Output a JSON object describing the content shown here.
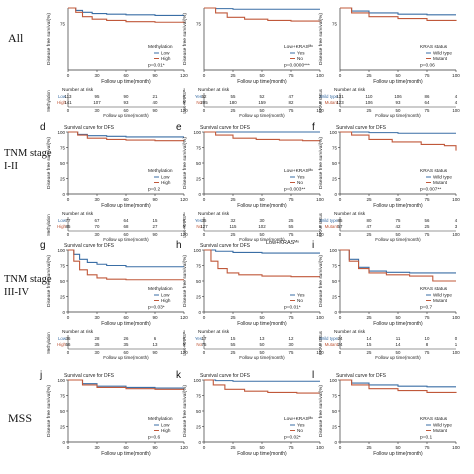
{
  "row_labels": [
    {
      "lines": [
        "All"
      ]
    },
    {
      "lines": [
        "TNM stage",
        "I-II"
      ]
    },
    {
      "lines": [
        "TNM stage",
        "III-IV"
      ]
    },
    {
      "lines": [
        "MSS"
      ]
    }
  ],
  "common": {
    "panel_title": "Survival curve for DFS",
    "ylabel": "Disease free survival(%)",
    "xlabel": "Follow up time(month)",
    "risk_title": "Number at risk",
    "colors": {
      "low": "#3a6ea5",
      "high": "#c0583a"
    }
  },
  "chart_data": [
    {
      "panel": "a",
      "type": "line",
      "show_title": false,
      "show_yticks": false,
      "ylim": [
        0,
        100
      ],
      "xlim": [
        0,
        120
      ],
      "xticks": [
        "0",
        "30",
        "60",
        "90",
        "120"
      ],
      "legend_title": "Methylation",
      "legend": [
        "Low",
        "High"
      ],
      "pvalue": "p=0.01*",
      "risk_labels": [
        "Low",
        "High"
      ],
      "risk_axis": "Methylation",
      "risk": [
        [
          "113",
          "95",
          "90",
          "21",
          "0"
        ],
        [
          "141",
          "107",
          "93",
          "40",
          "0"
        ]
      ],
      "series": [
        {
          "name": "Low",
          "x": [
            0,
            8,
            15,
            25,
            40,
            60,
            90,
            120
          ],
          "y": [
            100,
            96,
            93,
            91,
            90,
            89,
            88,
            88
          ]
        },
        {
          "name": "High",
          "x": [
            0,
            8,
            15,
            25,
            40,
            60,
            90,
            120
          ],
          "y": [
            100,
            93,
            86,
            82,
            80,
            78,
            77,
            76
          ]
        }
      ]
    },
    {
      "panel": "b",
      "type": "line",
      "show_title": false,
      "show_yticks": false,
      "ylim": [
        0,
        100
      ],
      "xlim": [
        0,
        100
      ],
      "xticks": [
        "0",
        "25",
        "50",
        "75",
        "100"
      ],
      "legend_title": "Low+KRASᴹᵘ",
      "legend": [
        "Yes",
        "No"
      ],
      "pvalue": "p=0.0000***",
      "risk_labels": [
        "Yes",
        "No"
      ],
      "risk_axis": "Low+KRASᴹᵘ",
      "risk": [
        [
          "52",
          "55",
          "52",
          "47",
          "3"
        ],
        [
          "205",
          "180",
          "159",
          "82",
          "6"
        ]
      ],
      "series": [
        {
          "name": "Yes",
          "x": [
            0,
            10,
            25,
            50,
            75,
            100
          ],
          "y": [
            100,
            99,
            98,
            98,
            98,
            98
          ]
        },
        {
          "name": "No",
          "x": [
            0,
            10,
            20,
            35,
            55,
            75,
            100
          ],
          "y": [
            100,
            92,
            85,
            82,
            80,
            79,
            78
          ]
        }
      ]
    },
    {
      "panel": "c",
      "type": "line",
      "show_title": false,
      "show_yticks": false,
      "ylim": [
        0,
        100
      ],
      "xlim": [
        0,
        100
      ],
      "xticks": [
        "0",
        "25",
        "50",
        "75",
        "100"
      ],
      "legend_title": "KRAS status",
      "legend": [
        "Wild type",
        "Mutant"
      ],
      "pvalue": "p=0.06",
      "risk_labels": [
        "Wild type",
        "Mutant"
      ],
      "risk_axis": "KRAS status",
      "risk": [
        [
          "131",
          "110",
          "106",
          "86",
          "4"
        ],
        [
          "123",
          "106",
          "93",
          "64",
          "4"
        ]
      ],
      "series": [
        {
          "name": "Wild type",
          "x": [
            0,
            10,
            25,
            50,
            75,
            100
          ],
          "y": [
            100,
            95,
            92,
            90,
            89,
            89
          ]
        },
        {
          "name": "Mutant",
          "x": [
            0,
            10,
            25,
            50,
            75,
            100
          ],
          "y": [
            100,
            92,
            86,
            83,
            80,
            79
          ]
        }
      ]
    },
    {
      "panel": "d",
      "type": "line",
      "show_title": true,
      "show_yticks": true,
      "ylim": [
        0,
        100
      ],
      "xlim": [
        0,
        120
      ],
      "yticks": [
        "0",
        "25",
        "50",
        "75",
        "100"
      ],
      "xticks": [
        "0",
        "30",
        "60",
        "90",
        "120"
      ],
      "legend_title": "Methylation",
      "legend": [
        "Low",
        "High"
      ],
      "pvalue": "p=0.2",
      "risk_labels": [
        "Low",
        "High"
      ],
      "risk_axis": "Methylation",
      "risk": [
        [
          "77",
          "67",
          "64",
          "15",
          "0"
        ],
        [
          "85",
          "70",
          "68",
          "27",
          "0"
        ]
      ],
      "series": [
        {
          "name": "Low",
          "x": [
            0,
            10,
            20,
            40,
            60,
            90,
            120
          ],
          "y": [
            100,
            96,
            94,
            93,
            92,
            92,
            92
          ]
        },
        {
          "name": "High",
          "x": [
            0,
            10,
            20,
            40,
            60,
            90,
            120
          ],
          "y": [
            100,
            95,
            90,
            88,
            87,
            86,
            86
          ]
        }
      ]
    },
    {
      "panel": "e",
      "type": "line",
      "show_title": true,
      "show_yticks": true,
      "ylim": [
        0,
        100
      ],
      "xlim": [
        0,
        100
      ],
      "yticks": [
        "0",
        "25",
        "50",
        "75",
        "100"
      ],
      "xticks": [
        "0",
        "25",
        "50",
        "75",
        "100"
      ],
      "legend_title": "Low+KRASᴹᵘ",
      "legend": [
        "Yes",
        "No"
      ],
      "pvalue": "p=0.003**",
      "risk_labels": [
        "Yes",
        "No"
      ],
      "risk_axis": "Low+KRASᴹᵘ",
      "risk": [
        [
          "35",
          "32",
          "30",
          "25",
          "1"
        ],
        [
          "127",
          "115",
          "102",
          "55",
          "6"
        ]
      ],
      "series": [
        {
          "name": "Yes",
          "x": [
            0,
            25,
            50,
            75,
            100
          ],
          "y": [
            100,
            100,
            100,
            100,
            100
          ]
        },
        {
          "name": "No",
          "x": [
            0,
            10,
            25,
            45,
            65,
            85,
            100
          ],
          "y": [
            100,
            95,
            90,
            88,
            87,
            86,
            86
          ]
        }
      ]
    },
    {
      "panel": "f",
      "type": "line",
      "show_title": true,
      "show_yticks": true,
      "ylim": [
        0,
        100
      ],
      "xlim": [
        0,
        100
      ],
      "yticks": [
        "0",
        "25",
        "50",
        "75",
        "100"
      ],
      "xticks": [
        "0",
        "25",
        "50",
        "75",
        "100"
      ],
      "legend_title": "KRAS status",
      "legend": [
        "Wild type",
        "Mutant"
      ],
      "pvalue": "p=0.007**",
      "risk_labels": [
        "Wild type",
        "Mutant"
      ],
      "risk_axis": "KRAS status",
      "risk": [
        [
          "85",
          "80",
          "75",
          "56",
          "4"
        ],
        [
          "57",
          "47",
          "42",
          "25",
          "3"
        ]
      ],
      "series": [
        {
          "name": "Wild type",
          "x": [
            0,
            25,
            50,
            75,
            100
          ],
          "y": [
            100,
            99,
            98,
            98,
            98
          ]
        },
        {
          "name": "Mutant",
          "x": [
            0,
            10,
            25,
            45,
            70,
            90,
            100
          ],
          "y": [
            100,
            95,
            88,
            84,
            80,
            78,
            70
          ]
        }
      ]
    },
    {
      "panel": "g",
      "type": "line",
      "show_title": true,
      "show_yticks": true,
      "ylim": [
        0,
        100
      ],
      "xlim": [
        0,
        120
      ],
      "yticks": [
        "0",
        "25",
        "50",
        "75",
        "100"
      ],
      "xticks": [
        "0",
        "30",
        "60",
        "90",
        "120"
      ],
      "legend_title": "Methylation",
      "legend": [
        "Low",
        "High"
      ],
      "pvalue": "p=0.03*",
      "risk_labels": [
        "Low",
        "High"
      ],
      "risk_axis": "Methylation",
      "risk": [
        [
          "36",
          "28",
          "26",
          "6",
          "0"
        ],
        [
          "56",
          "35",
          "35",
          "13",
          "0"
        ]
      ],
      "series": [
        {
          "name": "Low",
          "x": [
            0,
            6,
            12,
            20,
            30,
            40,
            60,
            90,
            120
          ],
          "y": [
            100,
            93,
            85,
            80,
            77,
            75,
            73,
            73,
            73
          ]
        },
        {
          "name": "High",
          "x": [
            0,
            6,
            12,
            20,
            30,
            40,
            60,
            90,
            120
          ],
          "y": [
            100,
            82,
            68,
            60,
            55,
            53,
            52,
            52,
            52
          ]
        }
      ]
    },
    {
      "panel": "h",
      "type": "line",
      "show_title": true,
      "show_yticks": true,
      "ylim": [
        0,
        100
      ],
      "xlim": [
        0,
        100
      ],
      "yticks": [
        "0",
        "25",
        "50",
        "75",
        "100"
      ],
      "xticks": [
        "0",
        "25",
        "50",
        "75",
        "100"
      ],
      "header_note": "Low+KRASᴹᵘ",
      "legend_title": "",
      "legend": [
        "Yes",
        "No"
      ],
      "pvalue": "p=0.01*",
      "risk_labels": [
        "Yes",
        "No"
      ],
      "risk_axis": "Low+KRASᴹᵘ",
      "risk": [
        [
          "17",
          "15",
          "13",
          "12",
          "0"
        ],
        [
          "75",
          "55",
          "50",
          "30",
          "0"
        ]
      ],
      "series": [
        {
          "name": "Yes",
          "x": [
            0,
            10,
            25,
            50,
            75,
            100
          ],
          "y": [
            100,
            98,
            96,
            95,
            95,
            95
          ]
        },
        {
          "name": "No",
          "x": [
            0,
            6,
            12,
            20,
            30,
            50,
            75,
            100
          ],
          "y": [
            100,
            82,
            70,
            63,
            60,
            58,
            57,
            57
          ]
        }
      ]
    },
    {
      "panel": "i",
      "type": "line",
      "show_title": false,
      "show_yticks": true,
      "ylim": [
        0,
        100
      ],
      "xlim": [
        0,
        100
      ],
      "yticks": [
        "0",
        "25",
        "50",
        "75",
        "100"
      ],
      "xticks": [
        "0",
        "25",
        "50",
        "75",
        "100"
      ],
      "legend_title": "KRAS status",
      "legend": [
        "Wild type",
        "Mutant"
      ],
      "pvalue": "p=0.7",
      "risk_labels": [
        "Wild type",
        "Mutant"
      ],
      "risk_axis": "KRAS status",
      "risk": [
        [
          "24",
          "14",
          "11",
          "10",
          "0"
        ],
        [
          "24",
          "15",
          "14",
          "8",
          "1"
        ]
      ],
      "series": [
        {
          "name": "Wild type",
          "x": [
            0,
            8,
            16,
            25,
            40,
            60,
            100
          ],
          "y": [
            100,
            85,
            72,
            66,
            64,
            63,
            63
          ]
        },
        {
          "name": "Mutant",
          "x": [
            0,
            8,
            16,
            25,
            40,
            60,
            80,
            100
          ],
          "y": [
            100,
            82,
            70,
            63,
            60,
            58,
            50,
            50
          ]
        }
      ]
    },
    {
      "panel": "j",
      "type": "line",
      "show_title": true,
      "show_yticks": true,
      "ylim": [
        0,
        100
      ],
      "xlim": [
        0,
        120
      ],
      "yticks": [
        "0",
        "25",
        "50",
        "75",
        "100"
      ],
      "xticks": [
        "0",
        "30",
        "60",
        "90",
        "120"
      ],
      "legend_title": "Methylation",
      "legend": [
        "Low",
        "High"
      ],
      "pvalue": "p=0.6",
      "risk_labels": [],
      "risk_axis": "",
      "risk": [],
      "series": [
        {
          "name": "Low",
          "x": [
            0,
            15,
            30,
            60,
            90,
            120
          ],
          "y": [
            100,
            94,
            90,
            88,
            87,
            87
          ]
        },
        {
          "name": "High",
          "x": [
            0,
            15,
            30,
            60,
            90,
            120
          ],
          "y": [
            100,
            92,
            88,
            86,
            85,
            85
          ]
        }
      ]
    },
    {
      "panel": "k",
      "type": "line",
      "show_title": true,
      "show_yticks": true,
      "ylim": [
        0,
        100
      ],
      "xlim": [
        0,
        100
      ],
      "yticks": [
        "0",
        "25",
        "50",
        "75",
        "100"
      ],
      "xticks": [
        "0",
        "25",
        "50",
        "75",
        "100"
      ],
      "legend_title": "Low+KRASᴹᵘ",
      "legend": [
        "Yes",
        "No"
      ],
      "pvalue": "p=0.02*",
      "risk_labels": [],
      "risk_axis": "",
      "risk": [],
      "series": [
        {
          "name": "Yes",
          "x": [
            0,
            10,
            25,
            50,
            75,
            100
          ],
          "y": [
            100,
            99,
            98,
            98,
            98,
            98
          ]
        },
        {
          "name": "No",
          "x": [
            0,
            8,
            18,
            35,
            55,
            80,
            100
          ],
          "y": [
            100,
            92,
            85,
            82,
            80,
            79,
            79
          ]
        }
      ]
    },
    {
      "panel": "l",
      "type": "line",
      "show_title": true,
      "show_yticks": true,
      "ylim": [
        0,
        100
      ],
      "xlim": [
        0,
        100
      ],
      "yticks": [
        "0",
        "25",
        "50",
        "75",
        "100"
      ],
      "xticks": [
        "0",
        "25",
        "50",
        "75",
        "100"
      ],
      "legend_title": "KRAS status",
      "legend": [
        "Wild type",
        "Mutant"
      ],
      "pvalue": "p=0.1",
      "risk_labels": [],
      "risk_axis": "",
      "risk": [],
      "series": [
        {
          "name": "Wild type",
          "x": [
            0,
            10,
            25,
            50,
            75,
            100
          ],
          "y": [
            100,
            95,
            92,
            90,
            89,
            89
          ]
        },
        {
          "name": "Mutant",
          "x": [
            0,
            10,
            25,
            50,
            75,
            100
          ],
          "y": [
            100,
            92,
            86,
            83,
            80,
            79
          ]
        }
      ]
    }
  ]
}
